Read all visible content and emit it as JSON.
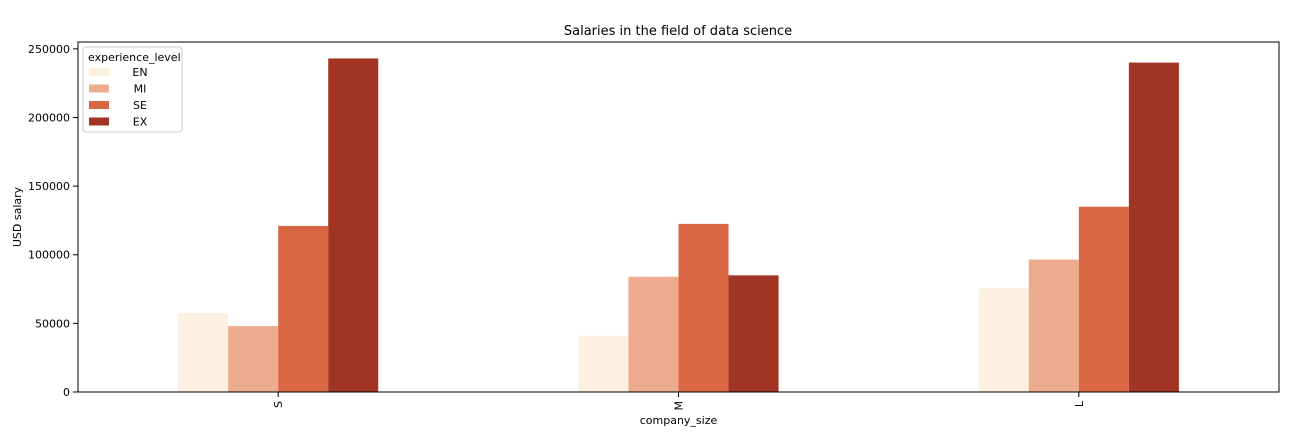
{
  "chart_data": {
    "type": "bar",
    "title": "Salaries in the field of data science",
    "xlabel": "company_size",
    "ylabel": "USD salary",
    "categories": [
      "S",
      "M",
      "L"
    ],
    "ylim": [
      0,
      255000
    ],
    "yticks": [
      0,
      50000,
      100000,
      150000,
      200000,
      250000
    ],
    "grid": false,
    "legend": {
      "title": "experience_level",
      "placement": "top-left"
    },
    "series": [
      {
        "name": "EN",
        "color": "#fef0e1",
        "values": [
          57500,
          41000,
          75500
        ]
      },
      {
        "name": "MI",
        "color": "#edac8e",
        "values": [
          48000,
          84000,
          96500
        ]
      },
      {
        "name": "SE",
        "color": "#da6744",
        "values": [
          121000,
          122500,
          135000
        ]
      },
      {
        "name": "EX",
        "color": "#a13422",
        "values": [
          243000,
          85000,
          240000
        ]
      }
    ]
  }
}
